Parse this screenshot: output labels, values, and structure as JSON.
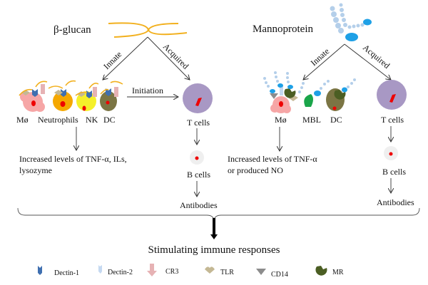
{
  "left": {
    "title": "β-glucan",
    "innate_label": "Innate",
    "acquired_label": "Acquired",
    "initiation_label": "Initiation",
    "cells": [
      "Mø",
      "Neutrophils",
      "NK",
      "DC"
    ],
    "innate_result_line1": "Increased levels of TNF-α, ILs,",
    "innate_result_line2": "lysozyme",
    "t_cells": "T cells",
    "b_cells": "B cells",
    "antibodies": "Antibodies"
  },
  "right": {
    "title": "Mannoprotein",
    "innate_label": "Innate",
    "acquired_label": "Acquired",
    "cells": [
      "Mø",
      "MBL",
      "DC"
    ],
    "innate_result_line1": "Increased levels of TNF-α",
    "innate_result_line2": "or produced NO",
    "t_cells": "T cells",
    "b_cells": "B cells",
    "antibodies": "Antibodies"
  },
  "conclusion": "Stimulating immune responses",
  "legend": [
    {
      "label": "Dectin-1",
      "icon": "dectin-1-receptor",
      "color": "#3f6fb0"
    },
    {
      "label": "Dectin-2",
      "icon": "dectin-2-receptor",
      "color": "#c5d9f1"
    },
    {
      "label": "CR3",
      "icon": "cr3-receptor",
      "color": "#e6b2b4"
    },
    {
      "label": "TLR",
      "icon": "tlr-receptor",
      "color": "#c4b894"
    },
    {
      "label": "CD14",
      "icon": "cd14-receptor",
      "color": "#8c8c8c"
    },
    {
      "label": "MR",
      "icon": "mannose-receptor",
      "color": "#4b5e23"
    }
  ]
}
